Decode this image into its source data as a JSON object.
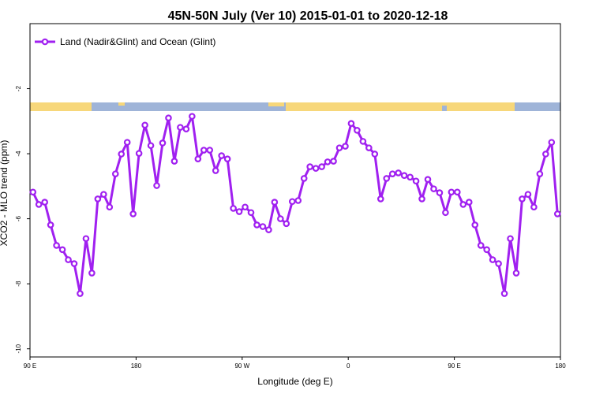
{
  "chart_data": {
    "type": "line",
    "title": "45N-50N July (Ver 10)   2015-01-01 to 2020-12-18",
    "xlabel": "Longitude (deg E)",
    "ylabel": "XCO2 - MLO trend (ppm)",
    "x": [
      92.5,
      97.5,
      102.5,
      107.5,
      112.5,
      117.5,
      122.5,
      127.5,
      132.5,
      137.5,
      142.5,
      147.5,
      152.5,
      157.5,
      162.5,
      167.5,
      172.5,
      177.5,
      182.5,
      187.5,
      192.5,
      197.5,
      202.5,
      207.5,
      212.5,
      217.5,
      222.5,
      227.5,
      232.5,
      237.5,
      242.5,
      247.5,
      252.5,
      257.5,
      262.5,
      267.5,
      272.5,
      277.5,
      282.5,
      287.5,
      292.5,
      297.5,
      302.5,
      307.5,
      312.5,
      317.5,
      322.5,
      327.5,
      332.5,
      337.5,
      342.5,
      347.5,
      352.5,
      357.5,
      362.5,
      367.5,
      372.5,
      377.5,
      382.5,
      387.5,
      392.5,
      397.5,
      402.5,
      407.5,
      412.5,
      417.5,
      422.5,
      427.5,
      432.5,
      437.5,
      442.5,
      447.5,
      452.5,
      457.5,
      462.5,
      467.5,
      472.5,
      477.5,
      482.5,
      487.5,
      492.5,
      497.5,
      502.5,
      507.5,
      512.5,
      517.5,
      522.5,
      527.5,
      532.5,
      537.5
    ],
    "series": [
      {
        "name": "Land (Nadir&Glint) and Ocean (Glint)",
        "color": "#a020f0",
        "values": [
          -5.18,
          -5.56,
          -5.49,
          -6.19,
          -6.82,
          -6.95,
          -7.26,
          -7.38,
          -8.3,
          -6.61,
          -7.67,
          -5.39,
          -5.25,
          -5.64,
          -4.62,
          -4.01,
          -3.65,
          -5.85,
          -3.99,
          -3.12,
          -3.75,
          -4.98,
          -3.67,
          -2.9,
          -4.23,
          -3.19,
          -3.24,
          -2.85,
          -4.16,
          -3.89,
          -3.89,
          -4.52,
          -4.06,
          -4.16,
          -5.68,
          -5.78,
          -5.64,
          -5.81,
          -6.19,
          -6.24,
          -6.34,
          -5.49,
          -6.0,
          -6.15,
          -5.47,
          -5.44,
          -4.76,
          -4.4,
          -4.45,
          -4.4,
          -4.25,
          -4.23,
          -3.82,
          -3.77,
          -3.07,
          -3.28,
          -3.62,
          -3.82,
          -4.01,
          -5.39,
          -4.76,
          -4.62,
          -4.59,
          -4.67,
          -4.72,
          -4.84,
          -5.39,
          -4.79,
          -5.08,
          -5.2,
          -5.81,
          -5.18,
          -5.18,
          -5.56,
          -5.49,
          -6.19,
          -6.82,
          -6.95,
          -7.26,
          -7.38,
          -8.3,
          -6.61,
          -7.67,
          -5.39,
          -5.25,
          -5.64,
          -4.62,
          -4.01,
          -3.65,
          -5.85
        ]
      }
    ],
    "xlim": [
      90,
      540
    ],
    "xticks": [
      {
        "value": 90,
        "label": "90 E"
      },
      180,
      {
        "value": 270,
        "label": "90 W"
      },
      {
        "value": 360,
        "label": "0"
      },
      {
        "value": 450,
        "label": "90 E"
      },
      {
        "value": 540,
        "label": "180"
      }
    ],
    "ylim": [
      -10.25,
      0
    ],
    "yticks": [
      -10,
      -8,
      -6,
      -4,
      -2
    ],
    "legend": "upper left"
  }
}
